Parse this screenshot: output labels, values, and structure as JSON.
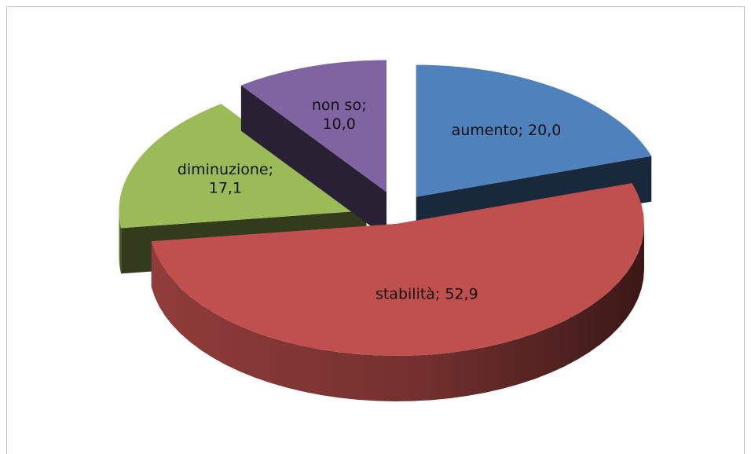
{
  "chart_data": {
    "type": "pie3d",
    "values": [
      20.0,
      52.9,
      17.1,
      10.0
    ],
    "value_labels": [
      "aumento; 20,0",
      "stabilità; 52,9",
      "diminuzione; 17,1",
      "non so; 10,0"
    ],
    "colors": [
      "#4f81bd",
      "#c0504d",
      "#9bbb59",
      "#8064a2"
    ]
  }
}
